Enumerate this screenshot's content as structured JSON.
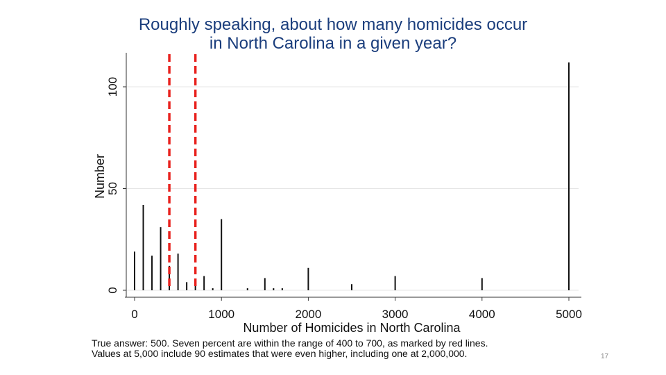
{
  "slide": {
    "title_line1": "Roughly speaking, about how many homicides occur",
    "title_line2": "in North Carolina in a given year?",
    "note_line1": "True answer: 500. Seven percent are within the range of 400 to 700, as marked by red lines.",
    "note_line2": "Values at 5,000 include 90 estimates that were even higher, including one at 2,000,000.",
    "page_number": "17"
  },
  "colors": {
    "title": "#1a3d7c",
    "bars": "#111111",
    "reference_lines": "#e8201c",
    "grid": "#e6e6e6"
  },
  "chart_data": {
    "type": "bar",
    "title": "Roughly speaking, about how many homicides occur in North Carolina in a given year?",
    "xlabel": "Number of Homicides in North Carolina",
    "ylabel": "Number",
    "xlim": [
      0,
      5000
    ],
    "ylim": [
      0,
      115
    ],
    "x_ticks": [
      0,
      1000,
      2000,
      3000,
      4000,
      5000
    ],
    "y_ticks": [
      0,
      50,
      100
    ],
    "grid": true,
    "reference_lines": [
      400,
      700
    ],
    "x": [
      0,
      100,
      200,
      300,
      400,
      500,
      600,
      700,
      800,
      900,
      1000,
      1300,
      1500,
      1600,
      1700,
      2000,
      2500,
      3000,
      4000,
      5000
    ],
    "values": [
      19,
      42,
      17,
      31,
      12,
      18,
      4,
      5,
      7,
      1,
      35,
      1,
      6,
      1,
      1,
      11,
      3,
      7,
      6,
      112
    ]
  }
}
